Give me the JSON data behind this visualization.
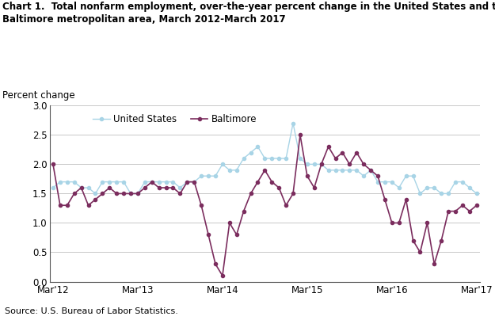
{
  "title_line1": "Chart 1.  Total nonfarm employment, over-the-year percent change in the United States and the",
  "title_line2": "Baltimore metropolitan area, March 2012-March 2017",
  "ylabel": "Percent change",
  "source": "Source: U.S. Bureau of Labor Statistics.",
  "us_color": "#a8d4e6",
  "balt_color": "#7b2d5e",
  "ylim": [
    0.0,
    3.0
  ],
  "yticks": [
    0.0,
    0.5,
    1.0,
    1.5,
    2.0,
    2.5,
    3.0
  ],
  "us_data": [
    1.6,
    1.7,
    1.7,
    1.7,
    1.6,
    1.6,
    1.5,
    1.7,
    1.7,
    1.7,
    1.7,
    1.5,
    1.5,
    1.7,
    1.7,
    1.7,
    1.7,
    1.7,
    1.6,
    1.7,
    1.7,
    1.8,
    1.8,
    1.8,
    2.0,
    1.9,
    1.9,
    2.1,
    2.2,
    2.3,
    2.1,
    2.1,
    2.1,
    2.1,
    2.7,
    2.1,
    2.0,
    2.0,
    2.0,
    1.9,
    1.9,
    1.9,
    1.9,
    1.9,
    1.8,
    1.9,
    1.7,
    1.7,
    1.7,
    1.6,
    1.8,
    1.8,
    1.5,
    1.6,
    1.6,
    1.5,
    1.5,
    1.7,
    1.7,
    1.6,
    1.5
  ],
  "balt_data": [
    2.0,
    1.3,
    1.3,
    1.5,
    1.6,
    1.3,
    1.4,
    1.5,
    1.6,
    1.5,
    1.5,
    1.5,
    1.5,
    1.6,
    1.7,
    1.6,
    1.6,
    1.6,
    1.5,
    1.7,
    1.7,
    1.3,
    0.8,
    0.3,
    0.1,
    1.0,
    0.8,
    1.2,
    1.5,
    1.7,
    1.9,
    1.7,
    1.6,
    1.3,
    1.5,
    2.5,
    1.8,
    1.6,
    2.0,
    2.3,
    2.1,
    2.2,
    2.0,
    2.2,
    2.0,
    1.9,
    1.8,
    1.4,
    1.0,
    1.0,
    1.4,
    0.7,
    0.5,
    1.0,
    0.3,
    0.7,
    1.2,
    1.2,
    1.3,
    1.2,
    1.3
  ],
  "xtick_positions": [
    0,
    12,
    24,
    36,
    48,
    60
  ],
  "xtick_labels": [
    "Mar'12",
    "Mar'13",
    "Mar'14",
    "Mar'15",
    "Mar'16",
    "Mar'17"
  ],
  "background_color": "#ffffff",
  "grid_color": "#c8c8c8"
}
